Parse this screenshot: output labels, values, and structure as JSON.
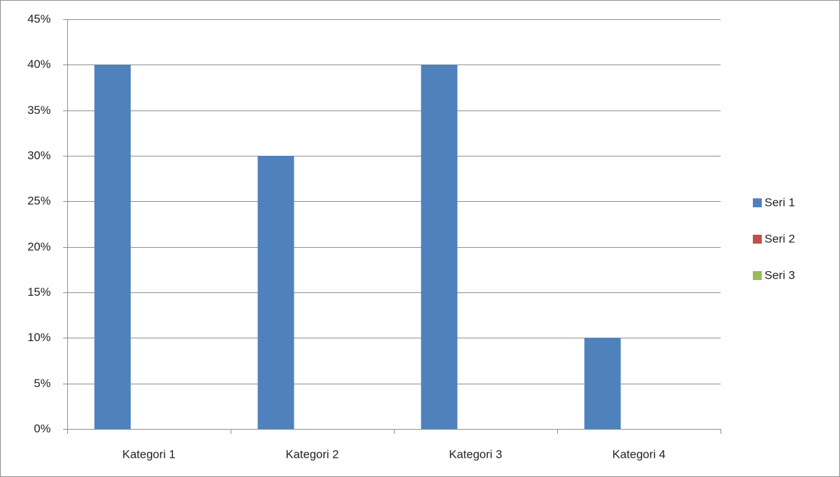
{
  "chart_data": {
    "type": "bar",
    "categories": [
      "Kategori 1",
      "Kategori 2",
      "Kategori 3",
      "Kategori 4"
    ],
    "series": [
      {
        "name": "Seri 1",
        "values": [
          40,
          30,
          40,
          10
        ],
        "color": "#4f81bd"
      },
      {
        "name": "Seri 2",
        "values": [
          0,
          0,
          0,
          0
        ],
        "color": "#c0504d"
      },
      {
        "name": "Seri 3",
        "values": [
          0,
          0,
          0,
          0
        ],
        "color": "#9bbb59"
      }
    ],
    "ylim": [
      0,
      45
    ],
    "yticks": [
      0,
      5,
      10,
      15,
      20,
      25,
      30,
      35,
      40,
      45
    ],
    "ytick_labels": [
      "0%",
      "5%",
      "10%",
      "15%",
      "20%",
      "25%",
      "30%",
      "35%",
      "40%",
      "45%"
    ],
    "grid": true,
    "legend_position": "right"
  }
}
